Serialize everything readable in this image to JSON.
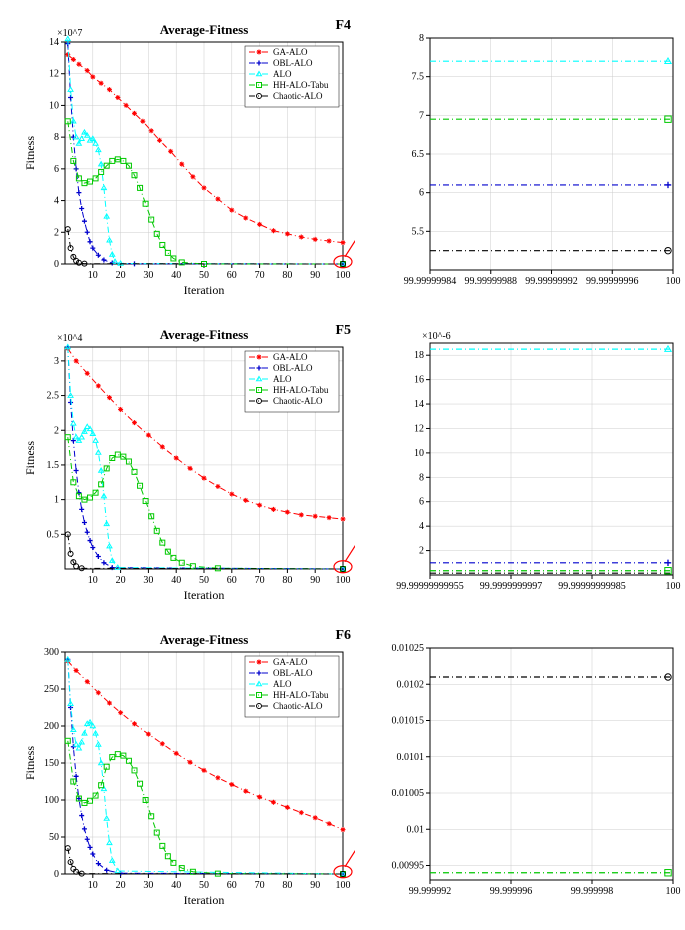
{
  "layout": {
    "rows": 3,
    "cols": 2,
    "row_labels": [
      "F4",
      "F5",
      "F6"
    ]
  },
  "series_meta": {
    "ga": {
      "name": "GA-ALO",
      "color": "#ff0000",
      "marker": "star",
      "dash": "6,3,1,3"
    },
    "obl": {
      "name": "OBL-ALO",
      "color": "#0000cd",
      "marker": "plus",
      "dash": "6,3,1,3"
    },
    "alo": {
      "name": "ALO",
      "color": "#00ffff",
      "marker": "triangle",
      "dash": "6,3,1,3"
    },
    "hh": {
      "name": "HH-ALO-Tabu",
      "color": "#00c800",
      "marker": "square",
      "dash": "6,3,1,3"
    },
    "chaotic": {
      "name": "Chaotic-ALO",
      "color": "#000000",
      "marker": "circle",
      "dash": "6,3,1,3"
    }
  },
  "legend_order": [
    "ga",
    "obl",
    "alo",
    "hh",
    "chaotic"
  ],
  "panels": [
    {
      "id": "F4-left",
      "title": "Average-Fitness",
      "xlabel": "Iteration",
      "ylabel": "Fitness",
      "exp": "×10^7",
      "xlim": [
        0,
        100
      ],
      "ylim": [
        0,
        14
      ],
      "xticks": [
        10,
        20,
        30,
        40,
        50,
        60,
        70,
        80,
        90,
        100
      ],
      "yticks": [
        0,
        2,
        4,
        6,
        8,
        10,
        12,
        14
      ],
      "legend": true,
      "series": {
        "ga": [
          [
            1,
            13.2
          ],
          [
            3,
            12.9
          ],
          [
            5,
            12.6
          ],
          [
            8,
            12.2
          ],
          [
            10,
            11.8
          ],
          [
            13,
            11.4
          ],
          [
            16,
            11.0
          ],
          [
            19,
            10.5
          ],
          [
            22,
            10.0
          ],
          [
            25,
            9.5
          ],
          [
            28,
            9.0
          ],
          [
            31,
            8.4
          ],
          [
            34,
            7.8
          ],
          [
            38,
            7.1
          ],
          [
            42,
            6.3
          ],
          [
            46,
            5.5
          ],
          [
            50,
            4.8
          ],
          [
            55,
            4.1
          ],
          [
            60,
            3.4
          ],
          [
            65,
            2.9
          ],
          [
            70,
            2.5
          ],
          [
            75,
            2.1
          ],
          [
            80,
            1.9
          ],
          [
            85,
            1.7
          ],
          [
            90,
            1.55
          ],
          [
            95,
            1.45
          ],
          [
            100,
            1.35
          ]
        ],
        "obl": [
          [
            1,
            13.9
          ],
          [
            2,
            10.5
          ],
          [
            3,
            8.0
          ],
          [
            4,
            6.0
          ],
          [
            5,
            4.5
          ],
          [
            6,
            3.5
          ],
          [
            7,
            2.7
          ],
          [
            8,
            2.0
          ],
          [
            9,
            1.4
          ],
          [
            10,
            1.0
          ],
          [
            12,
            0.55
          ],
          [
            14,
            0.25
          ],
          [
            17,
            0.06
          ],
          [
            25,
            0.01
          ],
          [
            100,
            0.0
          ]
        ],
        "alo": [
          [
            1,
            14.2
          ],
          [
            2,
            11.0
          ],
          [
            3,
            9.0
          ],
          [
            4,
            8.0
          ],
          [
            5,
            7.6
          ],
          [
            6,
            7.9
          ],
          [
            7,
            8.3
          ],
          [
            8,
            8.1
          ],
          [
            9,
            7.8
          ],
          [
            10,
            7.9
          ],
          [
            11,
            7.6
          ],
          [
            12,
            7.2
          ],
          [
            13,
            6.3
          ],
          [
            14,
            4.8
          ],
          [
            15,
            3.0
          ],
          [
            16,
            1.5
          ],
          [
            17,
            0.6
          ],
          [
            18,
            0.15
          ],
          [
            20,
            0.03
          ],
          [
            100,
            0.0
          ]
        ],
        "hh": [
          [
            1,
            9.0
          ],
          [
            3,
            6.5
          ],
          [
            5,
            5.4
          ],
          [
            7,
            5.1
          ],
          [
            9,
            5.2
          ],
          [
            11,
            5.4
          ],
          [
            13,
            5.8
          ],
          [
            15,
            6.2
          ],
          [
            17,
            6.5
          ],
          [
            19,
            6.6
          ],
          [
            21,
            6.5
          ],
          [
            23,
            6.2
          ],
          [
            25,
            5.6
          ],
          [
            27,
            4.8
          ],
          [
            29,
            3.8
          ],
          [
            31,
            2.8
          ],
          [
            33,
            1.9
          ],
          [
            35,
            1.2
          ],
          [
            37,
            0.7
          ],
          [
            39,
            0.35
          ],
          [
            42,
            0.1
          ],
          [
            50,
            0.0
          ],
          [
            100,
            0.0
          ]
        ],
        "chaotic": [
          [
            1,
            2.2
          ],
          [
            2,
            1.0
          ],
          [
            3,
            0.45
          ],
          [
            4,
            0.2
          ],
          [
            5,
            0.08
          ],
          [
            7,
            0.02
          ],
          [
            100,
            0.0
          ]
        ]
      },
      "callout": true
    },
    {
      "id": "F4-right",
      "xlim_labels": [
        "99.99999984",
        "99.99999988",
        "99.99999992",
        "99.99999996",
        "100"
      ],
      "ylim": [
        5,
        8
      ],
      "yticks": [
        5.5,
        6,
        6.5,
        7,
        7.5,
        8
      ],
      "lines": {
        "alo": 7.7,
        "hh": 6.95,
        "obl": 6.1,
        "chaotic": 5.25
      },
      "markers_right": {
        "alo": 7.7,
        "hh": 6.95,
        "obl": 6.1,
        "chaotic": 5.25
      }
    },
    {
      "id": "F5-left",
      "title": "Average-Fitness",
      "xlabel": "Iteration",
      "ylabel": "Fitness",
      "exp": "×10^4",
      "xlim": [
        0,
        100
      ],
      "ylim": [
        0,
        3.2
      ],
      "xticks": [
        10,
        20,
        30,
        40,
        50,
        60,
        70,
        80,
        90,
        100
      ],
      "yticks": [
        0.5,
        1,
        1.5,
        2,
        2.5,
        3
      ],
      "legend": true,
      "series": {
        "ga": [
          [
            1,
            3.18
          ],
          [
            4,
            3.0
          ],
          [
            8,
            2.82
          ],
          [
            12,
            2.64
          ],
          [
            16,
            2.47
          ],
          [
            20,
            2.3
          ],
          [
            25,
            2.11
          ],
          [
            30,
            1.93
          ],
          [
            35,
            1.76
          ],
          [
            40,
            1.6
          ],
          [
            45,
            1.45
          ],
          [
            50,
            1.31
          ],
          [
            55,
            1.19
          ],
          [
            60,
            1.08
          ],
          [
            65,
            0.99
          ],
          [
            70,
            0.92
          ],
          [
            75,
            0.86
          ],
          [
            80,
            0.82
          ],
          [
            85,
            0.78
          ],
          [
            90,
            0.76
          ],
          [
            95,
            0.74
          ],
          [
            100,
            0.72
          ]
        ],
        "obl": [
          [
            1,
            3.2
          ],
          [
            2,
            2.4
          ],
          [
            3,
            1.85
          ],
          [
            4,
            1.42
          ],
          [
            5,
            1.1
          ],
          [
            6,
            0.86
          ],
          [
            7,
            0.67
          ],
          [
            8,
            0.53
          ],
          [
            9,
            0.41
          ],
          [
            10,
            0.31
          ],
          [
            12,
            0.18
          ],
          [
            14,
            0.09
          ],
          [
            17,
            0.02
          ],
          [
            100,
            0.0
          ]
        ],
        "alo": [
          [
            1,
            3.2
          ],
          [
            2,
            2.5
          ],
          [
            3,
            2.1
          ],
          [
            4,
            1.9
          ],
          [
            5,
            1.85
          ],
          [
            6,
            1.9
          ],
          [
            7,
            1.98
          ],
          [
            8,
            2.05
          ],
          [
            9,
            2.02
          ],
          [
            10,
            1.95
          ],
          [
            11,
            1.85
          ],
          [
            12,
            1.68
          ],
          [
            13,
            1.42
          ],
          [
            14,
            1.05
          ],
          [
            15,
            0.65
          ],
          [
            16,
            0.33
          ],
          [
            17,
            0.12
          ],
          [
            19,
            0.02
          ],
          [
            100,
            0.0
          ]
        ],
        "hh": [
          [
            1,
            1.9
          ],
          [
            3,
            1.25
          ],
          [
            5,
            1.05
          ],
          [
            7,
            1.0
          ],
          [
            9,
            1.03
          ],
          [
            11,
            1.1
          ],
          [
            13,
            1.22
          ],
          [
            15,
            1.45
          ],
          [
            17,
            1.6
          ],
          [
            19,
            1.65
          ],
          [
            21,
            1.62
          ],
          [
            23,
            1.55
          ],
          [
            25,
            1.4
          ],
          [
            27,
            1.2
          ],
          [
            29,
            0.98
          ],
          [
            31,
            0.76
          ],
          [
            33,
            0.55
          ],
          [
            35,
            0.38
          ],
          [
            37,
            0.25
          ],
          [
            39,
            0.16
          ],
          [
            42,
            0.09
          ],
          [
            46,
            0.04
          ],
          [
            55,
            0.01
          ],
          [
            100,
            0.0
          ]
        ],
        "chaotic": [
          [
            1,
            0.5
          ],
          [
            2,
            0.22
          ],
          [
            3,
            0.1
          ],
          [
            4,
            0.04
          ],
          [
            6,
            0.01
          ],
          [
            100,
            0.0
          ]
        ]
      },
      "callout": true
    },
    {
      "id": "F5-right",
      "exp": "×10^-6",
      "xlim_labels": [
        "99.99999999955",
        "99.9999999997",
        "99.99999999985",
        "100"
      ],
      "ylim": [
        0,
        19
      ],
      "yticks": [
        2,
        4,
        6,
        8,
        10,
        12,
        14,
        16,
        18
      ],
      "lines": {
        "alo": 18.5,
        "obl": 1.0,
        "hh": 0.35,
        "chaotic": 0.15
      },
      "markers_right": {
        "alo": 18.5,
        "obl": 1.0,
        "hh": 0.35
      }
    },
    {
      "id": "F6-left",
      "title": "Average-Fitness",
      "xlabel": "Iteration",
      "ylabel": "Fitness",
      "xlim": [
        0,
        100
      ],
      "ylim": [
        0,
        300
      ],
      "xticks": [
        10,
        20,
        30,
        40,
        50,
        60,
        70,
        80,
        90,
        100
      ],
      "yticks": [
        0,
        50,
        100,
        150,
        200,
        250,
        300
      ],
      "legend": true,
      "series": {
        "ga": [
          [
            1,
            288
          ],
          [
            4,
            275
          ],
          [
            8,
            260
          ],
          [
            12,
            245
          ],
          [
            16,
            231
          ],
          [
            20,
            218
          ],
          [
            25,
            203
          ],
          [
            30,
            189
          ],
          [
            35,
            176
          ],
          [
            40,
            163
          ],
          [
            45,
            151
          ],
          [
            50,
            140
          ],
          [
            55,
            130
          ],
          [
            60,
            121
          ],
          [
            65,
            112
          ],
          [
            70,
            104
          ],
          [
            75,
            97
          ],
          [
            80,
            90
          ],
          [
            85,
            83
          ],
          [
            90,
            76
          ],
          [
            95,
            68
          ],
          [
            100,
            60
          ]
        ],
        "obl": [
          [
            1,
            290
          ],
          [
            2,
            225
          ],
          [
            3,
            172
          ],
          [
            4,
            132
          ],
          [
            5,
            102
          ],
          [
            6,
            79
          ],
          [
            7,
            61
          ],
          [
            8,
            47
          ],
          [
            9,
            36
          ],
          [
            10,
            27
          ],
          [
            12,
            14
          ],
          [
            15,
            5
          ],
          [
            20,
            1
          ],
          [
            100,
            0
          ]
        ],
        "alo": [
          [
            1,
            290
          ],
          [
            2,
            230
          ],
          [
            3,
            195
          ],
          [
            4,
            175
          ],
          [
            5,
            170
          ],
          [
            6,
            178
          ],
          [
            7,
            190
          ],
          [
            8,
            203
          ],
          [
            9,
            205
          ],
          [
            10,
            200
          ],
          [
            11,
            190
          ],
          [
            12,
            175
          ],
          [
            13,
            150
          ],
          [
            14,
            115
          ],
          [
            15,
            75
          ],
          [
            16,
            42
          ],
          [
            17,
            18
          ],
          [
            19,
            4
          ],
          [
            100,
            0
          ]
        ],
        "hh": [
          [
            1,
            180
          ],
          [
            3,
            125
          ],
          [
            5,
            102
          ],
          [
            7,
            96
          ],
          [
            9,
            99
          ],
          [
            11,
            106
          ],
          [
            13,
            120
          ],
          [
            15,
            145
          ],
          [
            17,
            158
          ],
          [
            19,
            162
          ],
          [
            21,
            160
          ],
          [
            23,
            153
          ],
          [
            25,
            140
          ],
          [
            27,
            122
          ],
          [
            29,
            100
          ],
          [
            31,
            78
          ],
          [
            33,
            56
          ],
          [
            35,
            38
          ],
          [
            37,
            24
          ],
          [
            39,
            15
          ],
          [
            42,
            8
          ],
          [
            46,
            3
          ],
          [
            55,
            0.5
          ],
          [
            100,
            0
          ]
        ],
        "chaotic": [
          [
            1,
            35
          ],
          [
            2,
            16
          ],
          [
            3,
            7
          ],
          [
            4,
            3
          ],
          [
            6,
            0.5
          ],
          [
            100,
            0
          ]
        ]
      },
      "callout": true
    },
    {
      "id": "F6-right",
      "xlim_labels": [
        "99.999992",
        "99.999996",
        "99.999998",
        "100"
      ],
      "ylim": [
        0.00993,
        0.01025
      ],
      "yticks": [
        0.00995,
        0.01,
        0.01005,
        0.0101,
        0.01015,
        0.0102,
        0.01025
      ],
      "lines": {
        "chaotic": 0.01021,
        "hh": 0.00994
      },
      "markers_right": {
        "chaotic": 0.01021,
        "hh": 0.00994
      }
    }
  ],
  "colors": {
    "grid": "#d9d9d9",
    "axis": "#000000",
    "callout": "#ff0000"
  }
}
